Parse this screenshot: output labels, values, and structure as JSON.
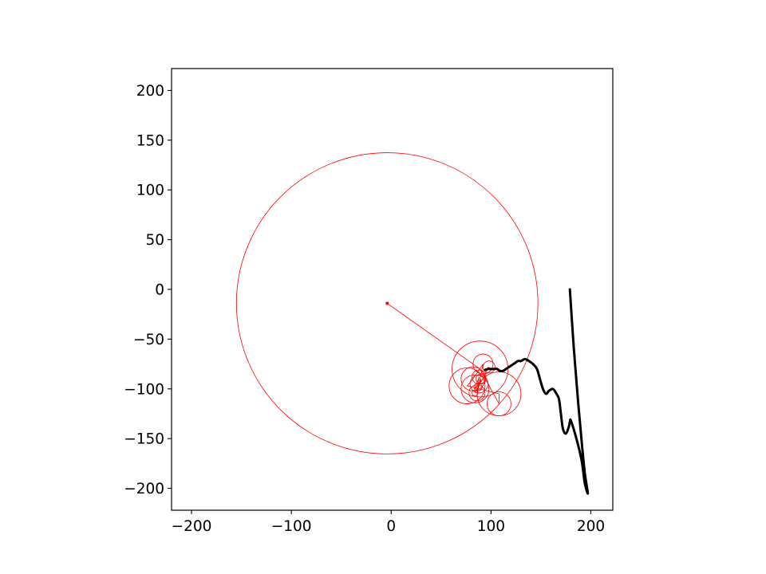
{
  "chart_data": {
    "type": "line",
    "title": "",
    "xlabel": "",
    "ylabel": "",
    "xlim": [
      -220,
      222
    ],
    "ylim": [
      -222,
      222
    ],
    "xticks": [
      -200,
      -100,
      0,
      100,
      200
    ],
    "yticks": [
      200,
      150,
      100,
      50,
      0,
      -50,
      -100,
      -150,
      -200
    ],
    "xtick_labels": [
      "−200",
      "−100",
      "0",
      "100",
      "200"
    ],
    "ytick_labels": [
      "200",
      "150",
      "100",
      "50",
      "0",
      "−50",
      "−100",
      "−150",
      "−200"
    ],
    "grid": false,
    "legend": "none",
    "colors": {
      "epicycles": "#ff0000",
      "trace": "#000000"
    },
    "series": [
      {
        "role": "traced-path",
        "x": [
          179,
          183,
          187,
          191,
          194,
          197,
          194,
          192,
          190,
          185,
          180,
          179,
          178,
          175,
          172,
          170,
          168,
          165,
          162,
          158,
          155,
          152,
          149,
          146,
          142,
          138,
          134,
          130,
          127,
          124,
          121,
          118,
          115,
          112,
          109,
          106,
          103,
          100,
          97,
          94
        ],
        "y": [
          0,
          -60,
          -110,
          -155,
          -185,
          -205,
          -195,
          -180,
          -168,
          -148,
          -132,
          -133,
          -138,
          -145,
          -140,
          -125,
          -110,
          -104,
          -100,
          -102,
          -105,
          -100,
          -90,
          -80,
          -75,
          -72,
          -70,
          -72,
          -72,
          -74,
          -76,
          -78,
          -80,
          -82,
          -82,
          -80,
          -80,
          -80,
          -80,
          -81
        ]
      }
    ],
    "epicycles": [
      {
        "cx": -4,
        "cy": -14,
        "r": 151
      },
      {
        "cx": 89,
        "cy": -80,
        "r": 28
      },
      {
        "cx": 108,
        "cy": -115,
        "r": 12
      },
      {
        "cx": 108,
        "cy": -105,
        "r": 22
      },
      {
        "cx": 76,
        "cy": -97,
        "r": 18
      },
      {
        "cx": 82,
        "cy": -90,
        "r": 12
      },
      {
        "cx": 92,
        "cy": -75,
        "r": 10
      },
      {
        "cx": 88,
        "cy": -95,
        "r": 9
      },
      {
        "cx": 84,
        "cy": -100,
        "r": 14
      },
      {
        "cx": 88,
        "cy": -88,
        "r": 7
      },
      {
        "cx": 86,
        "cy": -104,
        "r": 8
      },
      {
        "cx": 90,
        "cy": -90,
        "r": 5
      },
      {
        "cx": 87,
        "cy": -98,
        "r": 4
      },
      {
        "cx": 84,
        "cy": -104,
        "r": 3
      },
      {
        "cx": 98,
        "cy": -78,
        "r": 6
      }
    ],
    "connector": {
      "x": [
        -4,
        89,
        108,
        108,
        76,
        82,
        92,
        88,
        84,
        88,
        86,
        90,
        87,
        84,
        98,
        94
      ],
      "y": [
        -14,
        -80,
        -115,
        -105,
        -97,
        -90,
        -75,
        -95,
        -100,
        -88,
        -104,
        -90,
        -98,
        -104,
        -78,
        -81
      ]
    }
  }
}
